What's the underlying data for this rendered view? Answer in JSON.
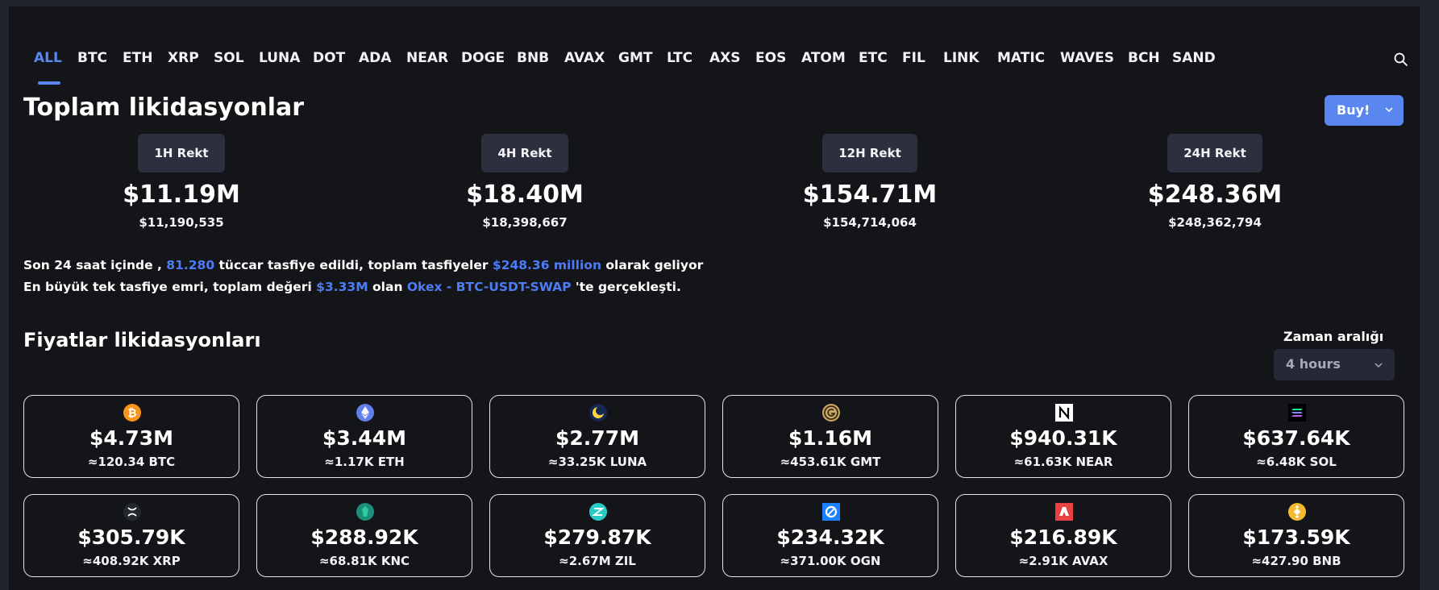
{
  "tabs": [
    "ALL",
    "BTC",
    "ETH",
    "XRP",
    "SOL",
    "LUNA",
    "DOT",
    "ADA",
    "NEAR",
    "DOGE",
    "BNB",
    "AVAX",
    "GMT",
    "LTC",
    "AXS",
    "EOS",
    "ATOM",
    "ETC",
    "FIL",
    "LINK",
    "MATIC",
    "WAVES",
    "BCH",
    "SAND"
  ],
  "active_tab": "ALL",
  "title": "Toplam likidasyonlar",
  "buy_label": "Buy!",
  "stats": [
    {
      "label": "1H Rekt",
      "value": "$11.19M",
      "exact": "$11,190,535"
    },
    {
      "label": "4H Rekt",
      "value": "$18.40M",
      "exact": "$18,398,667"
    },
    {
      "label": "12H Rekt",
      "value": "$154.71M",
      "exact": "$154,714,064"
    },
    {
      "label": "24H Rekt",
      "value": "$248.36M",
      "exact": "$248,362,794"
    }
  ],
  "info": {
    "line1": {
      "prefix": "Son 24 saat içinde , ",
      "traders": "81.280",
      "middle": " tüccar tasfiye edildi, toplam tasfiyeler ",
      "total": "$248.36 million",
      "suffix": " olarak geliyor"
    },
    "line2": {
      "prefix": "En büyük tek tasfiye emri, toplam değeri ",
      "value": "$3.33M",
      "middle": " olan ",
      "order": "Okex - BTC-USDT-SWAP",
      "suffix": " 'te gerçekleşti."
    }
  },
  "prices": {
    "title": "Fiyatlar likidasyonları",
    "range_label": "Zaman aralığı",
    "range_value": "4 hours"
  },
  "coins": [
    {
      "icon": "bitcoin-icon",
      "color": "#f7931a",
      "amount": "$4.73M",
      "qty": "≈120.34 BTC"
    },
    {
      "icon": "ethereum-icon",
      "color": "#627eea",
      "amount": "$3.44M",
      "qty": "≈1.17K ETH"
    },
    {
      "icon": "luna-icon",
      "color": "#172852",
      "amount": "$2.77M",
      "qty": "≈33.25K LUNA"
    },
    {
      "icon": "gmt-icon",
      "color": "#c9a86a",
      "amount": "$1.16M",
      "qty": "≈453.61K GMT"
    },
    {
      "icon": "near-icon",
      "color": "#ffffff",
      "amount": "$940.31K",
      "qty": "≈61.63K NEAR"
    },
    {
      "icon": "solana-icon",
      "color": "#000000",
      "amount": "$637.64K",
      "qty": "≈6.48K SOL"
    },
    {
      "icon": "xrp-icon",
      "color": "#23292f",
      "amount": "$305.79K",
      "qty": "≈408.92K XRP"
    },
    {
      "icon": "kyber-icon",
      "color": "#1b8f79",
      "amount": "$288.92K",
      "qty": "≈68.81K KNC"
    },
    {
      "icon": "zilliqa-icon",
      "color": "#29ccc4",
      "amount": "$279.87K",
      "qty": "≈2.67M ZIL"
    },
    {
      "icon": "origin-icon",
      "color": "#1a82ff",
      "amount": "$234.32K",
      "qty": "≈371.00K OGN"
    },
    {
      "icon": "avalanche-icon",
      "color": "#e84142",
      "amount": "$216.89K",
      "qty": "≈2.91K AVAX"
    },
    {
      "icon": "bnb-icon",
      "color": "#f3ba2f",
      "amount": "$173.59K",
      "qty": "≈427.90 BNB"
    }
  ]
}
